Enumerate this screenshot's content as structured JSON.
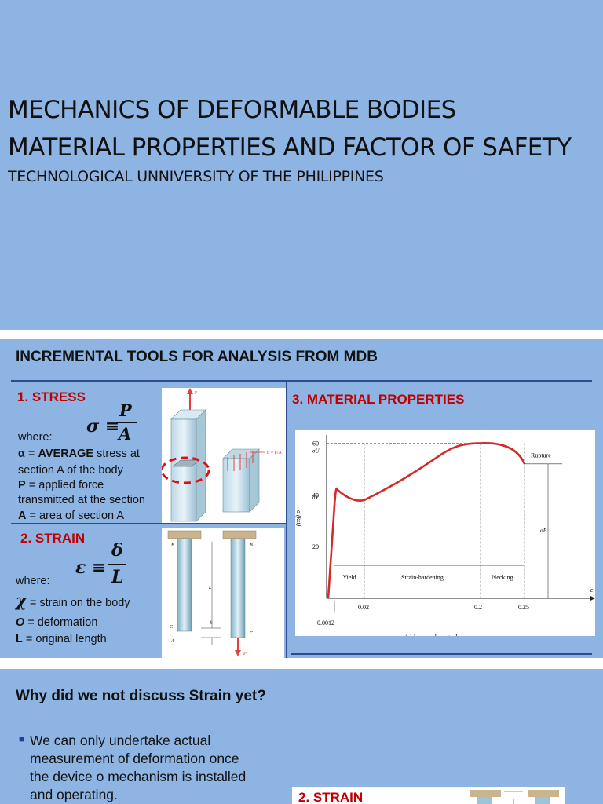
{
  "slide1": {
    "title_line1": "MECHANICS OF DEFORMABLE BODIES",
    "title_line2": "MATERIAL PROPERTIES AND FACTOR OF SAFETY",
    "subtitle": "TECHNOLOGICAL UNNIVERSITY OF THE PHILIPPINES"
  },
  "slide2": {
    "title": "INCREMENTAL TOOLS FOR ANALYSIS FROM MDB",
    "stress": {
      "heading": "1. STRESS",
      "where": "where:",
      "line1_sym": "α",
      "line1_rest": " = ",
      "line1_bold": "AVERAGE",
      "line1_end": " stress at",
      "line2": "section A of the body",
      "line3_sym": "P",
      "line3_rest": " = applied force",
      "line4": "transmitted at the section",
      "line5_sym": "A",
      "line5_rest": " = area of section A",
      "formula_lhs": "σ ≡",
      "formula_num": "P",
      "formula_den": "A"
    },
    "strain": {
      "heading": "2. STRAIN",
      "where": "where:",
      "line1_sym": "χ",
      "line1_rest": " = strain on the body",
      "line2_sym": "O",
      "line2_rest": " = deformation",
      "line3_sym": "L",
      "line3_rest": " = original length",
      "formula_lhs": "ε ≡",
      "formula_num": "δ",
      "formula_den": "L"
    },
    "material": {
      "heading": "3. MATERIAL PROPERTIES"
    },
    "fig_stress": {
      "label_f": "F",
      "label_sigma": "σ = F/A"
    },
    "fig_strain": {
      "label_b1": "B",
      "label_b2": "B",
      "label_c1": "C",
      "label_c2": "C",
      "label_a": "A",
      "label_l": "L",
      "label_delta": "δ",
      "label_p": "P"
    }
  },
  "chart_data": {
    "type": "line",
    "ylabel": "σ (ksi)",
    "xlabel": "ε",
    "x": [
      0,
      0.0012,
      0.003,
      0.02,
      0.1,
      0.2,
      0.25
    ],
    "values": [
      0,
      36,
      42,
      38,
      48,
      60,
      52
    ],
    "ylim": [
      0,
      65
    ],
    "ytick_labels": [
      "20",
      "40",
      "60"
    ],
    "ysub_labels": [
      "σY",
      "σU"
    ],
    "xtick_labels": [
      "0.0012",
      "0.02",
      "0.2",
      "0.25"
    ],
    "region_labels": [
      "Yield",
      "Strain-hardening",
      "Necking"
    ],
    "annotations": [
      "Rupture",
      "σB"
    ],
    "caption": "(a) Low-carbon steel",
    "grid": false,
    "color": "#d42a2a"
  },
  "slide3": {
    "title": "Why did we not discuss Strain yet?",
    "bullet_lines": [
      "We can only undertake actual",
      "measurement of deformation once",
      "the device o mechanism is installed",
      "and operating."
    ],
    "thumb_heading": "2. STRAIN"
  },
  "colors": {
    "slide_bg": "#8eb4e3",
    "heading_red": "#c00000",
    "divider": "#2b4d8f",
    "curve": "#d42a2a"
  }
}
